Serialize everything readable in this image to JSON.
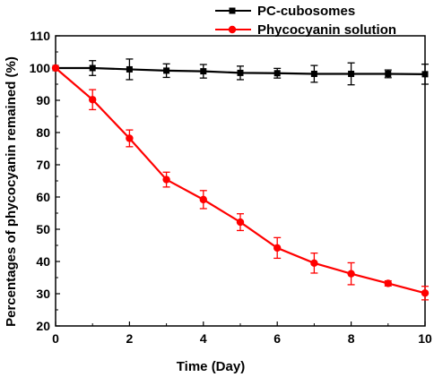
{
  "chart_data": {
    "type": "line",
    "xlabel": "Time (Day)",
    "ylabel": "Percentages of phycocyanin remained (%)",
    "xlim": [
      0,
      10
    ],
    "ylim": [
      20,
      110
    ],
    "xticks": [
      "0",
      "2",
      "4",
      "6",
      "8",
      "10"
    ],
    "yticks": [
      "20",
      "30",
      "40",
      "50",
      "60",
      "70",
      "80",
      "90",
      "100",
      "110"
    ],
    "legend_position": "top-right",
    "grid": false,
    "series": [
      {
        "name": "PC-cubosomes",
        "color": "#000000",
        "marker": "square",
        "x": [
          0,
          1,
          2,
          3,
          4,
          5,
          6,
          7,
          8,
          9,
          10
        ],
        "y": [
          100,
          100,
          99.6,
          99.2,
          99,
          98.5,
          98.4,
          98.2,
          98.2,
          98.2,
          98.1
        ],
        "error": [
          0,
          2.3,
          3.2,
          2.1,
          2.1,
          2.1,
          1.5,
          2.6,
          3.4,
          1.2,
          3.1
        ]
      },
      {
        "name": "Phycocyanin solution",
        "color": "#ff0000",
        "marker": "circle",
        "x": [
          0,
          1,
          2,
          3,
          4,
          5,
          6,
          7,
          8,
          9,
          10
        ],
        "y": [
          100,
          90.2,
          78.2,
          65.4,
          59.2,
          52.2,
          44.2,
          39.5,
          36.2,
          33.2,
          30.2
        ],
        "error": [
          0,
          3.1,
          2.6,
          2.3,
          2.8,
          2.6,
          3.2,
          3.1,
          3.4,
          0.8,
          2.1
        ]
      }
    ]
  }
}
